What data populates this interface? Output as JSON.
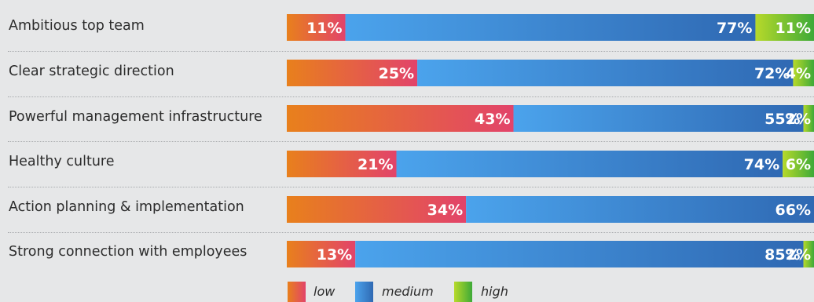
{
  "chart_data": {
    "type": "bar",
    "orientation": "horizontal",
    "stacked": true,
    "value_unit": "%",
    "categories": [
      "Ambitious top team",
      "Clear strategic direction",
      "Powerful management infrastructure",
      "Healthy culture",
      "Action planning & implementation",
      "Strong connection with employees"
    ],
    "series": [
      {
        "name": "low",
        "values": [
          11,
          25,
          43,
          21,
          34,
          13
        ],
        "color_start": "#e8801c",
        "color_end": "#e2436a"
      },
      {
        "name": "medium",
        "values": [
          77,
          72,
          55,
          74,
          66,
          85
        ],
        "color_start": "#4ba3ec",
        "color_end": "#2f69b3"
      },
      {
        "name": "high",
        "values": [
          11,
          4,
          2,
          6,
          0,
          2
        ],
        "color_start": "#b7d92a",
        "color_end": "#3daa38"
      }
    ],
    "data_labels": [
      [
        "11%",
        "77%",
        "11%"
      ],
      [
        "25%",
        "72%",
        "4%"
      ],
      [
        "43%",
        "55%",
        "2%"
      ],
      [
        "21%",
        "74%",
        "6%"
      ],
      [
        "34%",
        "66%",
        ""
      ],
      [
        "13%",
        "85%",
        "2%"
      ]
    ],
    "legend": {
      "position": "bottom",
      "items": [
        "low",
        "medium",
        "high"
      ]
    },
    "grid": false
  }
}
